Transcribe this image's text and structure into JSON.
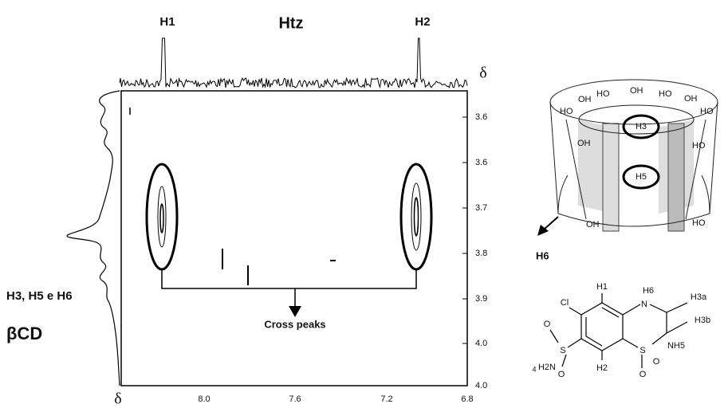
{
  "spectrum": {
    "top_label": "Htz",
    "peak_labels": [
      "H1",
      "H2"
    ],
    "x_axis_symbol": "δ",
    "y_axis_symbol": "δ",
    "x_tick_labels": [
      "8.0",
      "7.6",
      "7.2",
      "6.8"
    ],
    "y_tick_labels": [
      "3.6",
      "3.6",
      "3.7",
      "3.8",
      "3.9",
      "4.0",
      "4.0"
    ],
    "side_labels": [
      "H3, H5 e H6",
      "βCD"
    ],
    "annotation": "Cross peaks"
  },
  "cyclodextrin": {
    "cavity_labels": [
      "H3",
      "H5"
    ],
    "rim_labels": [
      "HO",
      "OH",
      "HO",
      "OH",
      "HO",
      "OH",
      "HO",
      "OH",
      "HO",
      "HO",
      "OH"
    ],
    "outer_label": "H6"
  },
  "molecule": {
    "atoms": [
      "Cl",
      "H1",
      "H6",
      "N",
      "H3a",
      "H3b",
      "NH5",
      "S",
      "O",
      "O",
      "S",
      "O",
      "O",
      "H2",
      "4",
      "H2N"
    ]
  }
}
